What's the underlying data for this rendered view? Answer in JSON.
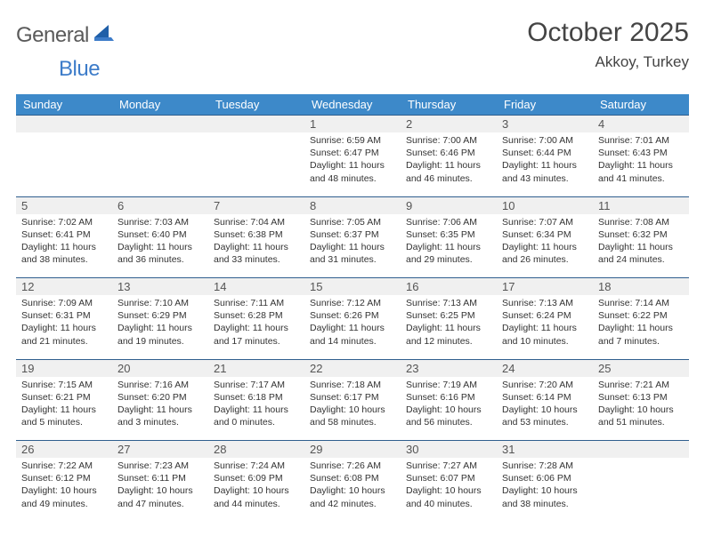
{
  "logo": {
    "text1": "General",
    "text2": "Blue"
  },
  "title": "October 2025",
  "subtitle": "Akkoy, Turkey",
  "colors": {
    "header_bg": "#3d89c9",
    "header_text": "#ffffff",
    "rule": "#2f5e8e",
    "daynum_bg": "#f0f0f0",
    "logo_gray": "#5a5a5a",
    "logo_blue": "#3d7cc9"
  },
  "weekdays": [
    "Sunday",
    "Monday",
    "Tuesday",
    "Wednesday",
    "Thursday",
    "Friday",
    "Saturday"
  ],
  "weeks": [
    [
      null,
      null,
      null,
      {
        "n": "1",
        "sr": "6:59 AM",
        "ss": "6:47 PM",
        "dl": "11 hours and 48 minutes."
      },
      {
        "n": "2",
        "sr": "7:00 AM",
        "ss": "6:46 PM",
        "dl": "11 hours and 46 minutes."
      },
      {
        "n": "3",
        "sr": "7:00 AM",
        "ss": "6:44 PM",
        "dl": "11 hours and 43 minutes."
      },
      {
        "n": "4",
        "sr": "7:01 AM",
        "ss": "6:43 PM",
        "dl": "11 hours and 41 minutes."
      }
    ],
    [
      {
        "n": "5",
        "sr": "7:02 AM",
        "ss": "6:41 PM",
        "dl": "11 hours and 38 minutes."
      },
      {
        "n": "6",
        "sr": "7:03 AM",
        "ss": "6:40 PM",
        "dl": "11 hours and 36 minutes."
      },
      {
        "n": "7",
        "sr": "7:04 AM",
        "ss": "6:38 PM",
        "dl": "11 hours and 33 minutes."
      },
      {
        "n": "8",
        "sr": "7:05 AM",
        "ss": "6:37 PM",
        "dl": "11 hours and 31 minutes."
      },
      {
        "n": "9",
        "sr": "7:06 AM",
        "ss": "6:35 PM",
        "dl": "11 hours and 29 minutes."
      },
      {
        "n": "10",
        "sr": "7:07 AM",
        "ss": "6:34 PM",
        "dl": "11 hours and 26 minutes."
      },
      {
        "n": "11",
        "sr": "7:08 AM",
        "ss": "6:32 PM",
        "dl": "11 hours and 24 minutes."
      }
    ],
    [
      {
        "n": "12",
        "sr": "7:09 AM",
        "ss": "6:31 PM",
        "dl": "11 hours and 21 minutes."
      },
      {
        "n": "13",
        "sr": "7:10 AM",
        "ss": "6:29 PM",
        "dl": "11 hours and 19 minutes."
      },
      {
        "n": "14",
        "sr": "7:11 AM",
        "ss": "6:28 PM",
        "dl": "11 hours and 17 minutes."
      },
      {
        "n": "15",
        "sr": "7:12 AM",
        "ss": "6:26 PM",
        "dl": "11 hours and 14 minutes."
      },
      {
        "n": "16",
        "sr": "7:13 AM",
        "ss": "6:25 PM",
        "dl": "11 hours and 12 minutes."
      },
      {
        "n": "17",
        "sr": "7:13 AM",
        "ss": "6:24 PM",
        "dl": "11 hours and 10 minutes."
      },
      {
        "n": "18",
        "sr": "7:14 AM",
        "ss": "6:22 PM",
        "dl": "11 hours and 7 minutes."
      }
    ],
    [
      {
        "n": "19",
        "sr": "7:15 AM",
        "ss": "6:21 PM",
        "dl": "11 hours and 5 minutes."
      },
      {
        "n": "20",
        "sr": "7:16 AM",
        "ss": "6:20 PM",
        "dl": "11 hours and 3 minutes."
      },
      {
        "n": "21",
        "sr": "7:17 AM",
        "ss": "6:18 PM",
        "dl": "11 hours and 0 minutes."
      },
      {
        "n": "22",
        "sr": "7:18 AM",
        "ss": "6:17 PM",
        "dl": "10 hours and 58 minutes."
      },
      {
        "n": "23",
        "sr": "7:19 AM",
        "ss": "6:16 PM",
        "dl": "10 hours and 56 minutes."
      },
      {
        "n": "24",
        "sr": "7:20 AM",
        "ss": "6:14 PM",
        "dl": "10 hours and 53 minutes."
      },
      {
        "n": "25",
        "sr": "7:21 AM",
        "ss": "6:13 PM",
        "dl": "10 hours and 51 minutes."
      }
    ],
    [
      {
        "n": "26",
        "sr": "7:22 AM",
        "ss": "6:12 PM",
        "dl": "10 hours and 49 minutes."
      },
      {
        "n": "27",
        "sr": "7:23 AM",
        "ss": "6:11 PM",
        "dl": "10 hours and 47 minutes."
      },
      {
        "n": "28",
        "sr": "7:24 AM",
        "ss": "6:09 PM",
        "dl": "10 hours and 44 minutes."
      },
      {
        "n": "29",
        "sr": "7:26 AM",
        "ss": "6:08 PM",
        "dl": "10 hours and 42 minutes."
      },
      {
        "n": "30",
        "sr": "7:27 AM",
        "ss": "6:07 PM",
        "dl": "10 hours and 40 minutes."
      },
      {
        "n": "31",
        "sr": "7:28 AM",
        "ss": "6:06 PM",
        "dl": "10 hours and 38 minutes."
      },
      null
    ]
  ],
  "labels": {
    "sunrise": "Sunrise:",
    "sunset": "Sunset:",
    "daylight": "Daylight:"
  }
}
